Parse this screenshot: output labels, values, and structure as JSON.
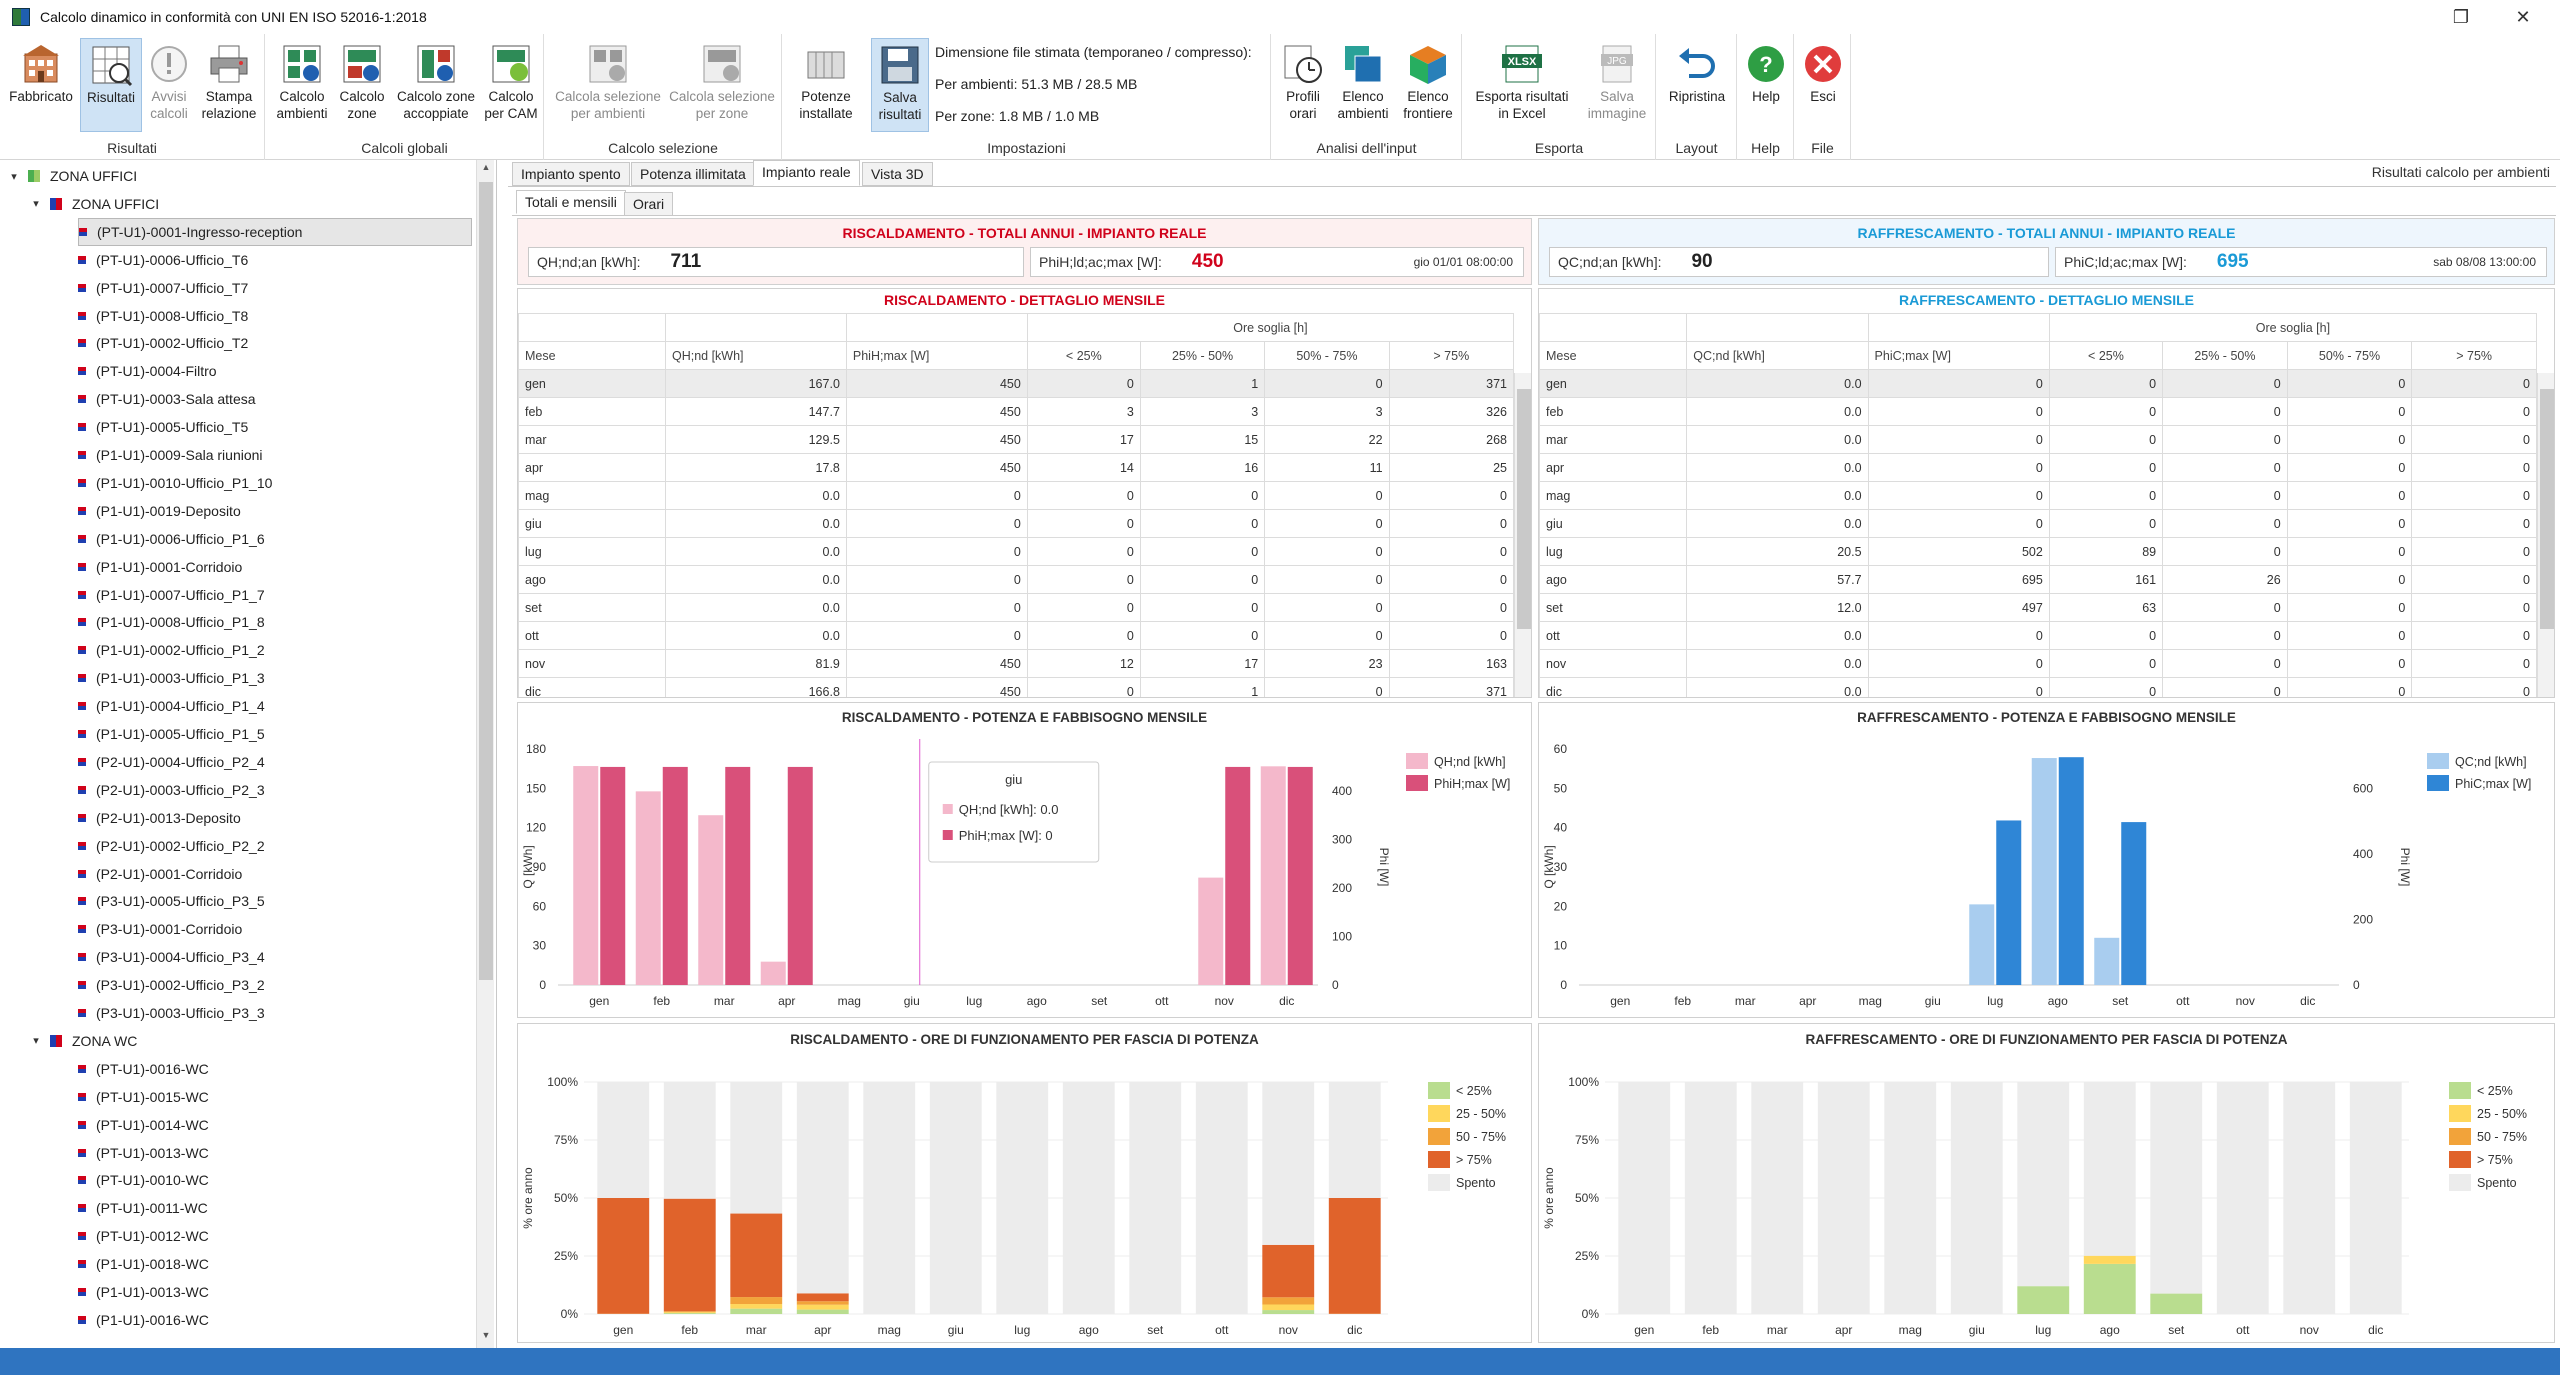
{
  "window": {
    "title": "Calcolo dinamico in conformità con UNI EN ISO 52016-1:2018",
    "restore": "❐",
    "close": "✕"
  },
  "ribbon": {
    "groups": [
      {
        "caption": "Risultati",
        "buttons": [
          "Fabbricato",
          "Risultati",
          "Avvisi\ncalcoli",
          "Stampa\nrelazione"
        ]
      },
      {
        "caption": "Calcoli globali",
        "buttons": [
          "Calcolo\nambienti",
          "Calcolo\nzone",
          "Calcolo zone\naccoppiate",
          "Calcolo\nper CAM"
        ]
      },
      {
        "caption": "Calcolo selezione",
        "buttons": [
          "Calcola selezione\nper ambienti",
          "Calcola selezione\nper zone"
        ]
      },
      {
        "caption": "Impostazioni",
        "buttons": [
          "Potenze\ninstallate",
          "Salva\nrisultati"
        ]
      },
      {
        "caption": "Analisi dell'input",
        "buttons": [
          "Profili\norari",
          "Elenco\nambienti",
          "Elenco\nfrontiere"
        ]
      },
      {
        "caption": "Esporta",
        "buttons": [
          "Esporta risultati\nin Excel",
          "Salva\nimmagine"
        ]
      },
      {
        "caption": "Layout",
        "buttons": [
          "Ripristina"
        ]
      },
      {
        "caption": "Help",
        "buttons": [
          "Help"
        ]
      },
      {
        "caption": "File",
        "buttons": [
          "Esci"
        ]
      }
    ],
    "settings": {
      "line1": "Dimensione file stimata (temporaneo / compresso):",
      "line2": "Per ambienti: 51.3 MB / 28.5 MB",
      "line3": "Per zone: 1.8 MB / 1.0 MB"
    },
    "icons": {
      "xlsx": "XLSX",
      "jpg": "JPG"
    }
  },
  "tree": {
    "root": "ZONA UFFICI",
    "zone1": "ZONA UFFICI",
    "zone1_items": [
      "(PT-U1)-0001-Ingresso-reception",
      "(PT-U1)-0006-Ufficio_T6",
      "(PT-U1)-0007-Ufficio_T7",
      "(PT-U1)-0008-Ufficio_T8",
      "(PT-U1)-0002-Ufficio_T2",
      "(PT-U1)-0004-Filtro",
      "(PT-U1)-0003-Sala attesa",
      "(PT-U1)-0005-Ufficio_T5",
      "(P1-U1)-0009-Sala riunioni",
      "(P1-U1)-0010-Ufficio_P1_10",
      "(P1-U1)-0019-Deposito",
      "(P1-U1)-0006-Ufficio_P1_6",
      "(P1-U1)-0001-Corridoio",
      "(P1-U1)-0007-Ufficio_P1_7",
      "(P1-U1)-0008-Ufficio_P1_8",
      "(P1-U1)-0002-Ufficio_P1_2",
      "(P1-U1)-0003-Ufficio_P1_3",
      "(P1-U1)-0004-Ufficio_P1_4",
      "(P1-U1)-0005-Ufficio_P1_5",
      "(P2-U1)-0004-Ufficio_P2_4",
      "(P2-U1)-0003-Ufficio_P2_3",
      "(P2-U1)-0013-Deposito",
      "(P2-U1)-0002-Ufficio_P2_2",
      "(P2-U1)-0001-Corridoio",
      "(P3-U1)-0005-Ufficio_P3_5",
      "(P3-U1)-0001-Corridoio",
      "(P3-U1)-0004-Ufficio_P3_4",
      "(P3-U1)-0002-Ufficio_P3_2",
      "(P3-U1)-0003-Ufficio_P3_3"
    ],
    "zone2": "ZONA WC",
    "zone2_items": [
      "(PT-U1)-0016-WC",
      "(PT-U1)-0015-WC",
      "(PT-U1)-0014-WC",
      "(PT-U1)-0013-WC",
      "(PT-U1)-0010-WC",
      "(PT-U1)-0011-WC",
      "(PT-U1)-0012-WC",
      "(P1-U1)-0018-WC",
      "(P1-U1)-0013-WC",
      "(P1-U1)-0016-WC"
    ]
  },
  "tabs": [
    "Impianto spento",
    "Potenza illimitata",
    "Impianto reale",
    "Vista 3D"
  ],
  "subtabs": [
    "Totali e mensili",
    "Orari"
  ],
  "right_label": "Risultati calcolo per ambienti",
  "heating": {
    "totals_title": "RISCALDAMENTO - TOTALI ANNUI - IMPIANTO REALE",
    "k1_label": "QH;nd;an [kWh]:",
    "k1_value": "711",
    "k2_label": "PhiH;ld;ac;max [W]:",
    "k2_value": "450",
    "k2_time": "gio 01/01 08:00:00",
    "monthly_title": "RISCALDAMENTO - DETTAGLIO MENSILE",
    "headers": [
      "Mese",
      "QH;nd [kWh]",
      "PhiH;max [W]",
      "Ore soglia [h]",
      "< 25%",
      "25% - 50%",
      "50% - 75%",
      "> 75%"
    ],
    "rows": [
      [
        "gen",
        "167.0",
        "450",
        "0",
        "1",
        "0",
        "371"
      ],
      [
        "feb",
        "147.7",
        "450",
        "3",
        "3",
        "3",
        "326"
      ],
      [
        "mar",
        "129.5",
        "450",
        "17",
        "15",
        "22",
        "268"
      ],
      [
        "apr",
        "17.8",
        "450",
        "14",
        "16",
        "11",
        "25"
      ],
      [
        "mag",
        "0.0",
        "0",
        "0",
        "0",
        "0",
        "0"
      ],
      [
        "giu",
        "0.0",
        "0",
        "0",
        "0",
        "0",
        "0"
      ],
      [
        "lug",
        "0.0",
        "0",
        "0",
        "0",
        "0",
        "0"
      ],
      [
        "ago",
        "0.0",
        "0",
        "0",
        "0",
        "0",
        "0"
      ],
      [
        "set",
        "0.0",
        "0",
        "0",
        "0",
        "0",
        "0"
      ],
      [
        "ott",
        "0.0",
        "0",
        "0",
        "0",
        "0",
        "0"
      ],
      [
        "nov",
        "81.9",
        "450",
        "12",
        "17",
        "23",
        "163"
      ],
      [
        "dic",
        "166.8",
        "450",
        "0",
        "1",
        "0",
        "371"
      ]
    ],
    "chart1_title": "RISCALDAMENTO - POTENZA E FABBISOGNO MENSILE",
    "chart2_title": "RISCALDAMENTO - ORE DI FUNZIONAMENTO PER FASCIA DI POTENZA",
    "tooltip": {
      "title": "giu",
      "line1": "QH;nd [kWh]: 0.0",
      "line2": "PhiH;max [W]: 0"
    }
  },
  "cooling": {
    "totals_title": "RAFFRESCAMENTO - TOTALI ANNUI - IMPIANTO REALE",
    "k1_label": "QC;nd;an [kWh]:",
    "k1_value": "90",
    "k2_label": "PhiC;ld;ac;max [W]:",
    "k2_value": "695",
    "k2_time": "sab 08/08 13:00:00",
    "monthly_title": "RAFFRESCAMENTO - DETTAGLIO MENSILE",
    "headers": [
      "Mese",
      "QC;nd [kWh]",
      "PhiC;max [W]",
      "Ore soglia [h]",
      "< 25%",
      "25% - 50%",
      "50% - 75%",
      "> 75%"
    ],
    "rows": [
      [
        "gen",
        "0.0",
        "0",
        "0",
        "0",
        "0",
        "0"
      ],
      [
        "feb",
        "0.0",
        "0",
        "0",
        "0",
        "0",
        "0"
      ],
      [
        "mar",
        "0.0",
        "0",
        "0",
        "0",
        "0",
        "0"
      ],
      [
        "apr",
        "0.0",
        "0",
        "0",
        "0",
        "0",
        "0"
      ],
      [
        "mag",
        "0.0",
        "0",
        "0",
        "0",
        "0",
        "0"
      ],
      [
        "giu",
        "0.0",
        "0",
        "0",
        "0",
        "0",
        "0"
      ],
      [
        "lug",
        "20.5",
        "502",
        "89",
        "0",
        "0",
        "0"
      ],
      [
        "ago",
        "57.7",
        "695",
        "161",
        "26",
        "0",
        "0"
      ],
      [
        "set",
        "12.0",
        "497",
        "63",
        "0",
        "0",
        "0"
      ],
      [
        "ott",
        "0.0",
        "0",
        "0",
        "0",
        "0",
        "0"
      ],
      [
        "nov",
        "0.0",
        "0",
        "0",
        "0",
        "0",
        "0"
      ],
      [
        "dic",
        "0.0",
        "0",
        "0",
        "0",
        "0",
        "0"
      ]
    ],
    "chart1_title": "RAFFRESCAMENTO - POTENZA E FABBISOGNO MENSILE",
    "chart2_title": "RAFFRESCAMENTO - ORE DI FUNZIONAMENTO PER FASCIA DI POTENZA"
  },
  "colors": {
    "heat_red": "#d0021b",
    "cool_blue": "#1a9ad6",
    "heat_light": "#f4b8cb",
    "heat_dark": "#d9507a",
    "cool_light": "#a9cdef",
    "cool_dark": "#2f86d6",
    "b1": "#b9dd8f",
    "b2": "#ffd75c",
    "b3": "#f2a33a",
    "b4": "#e0632b",
    "off": "#ececec"
  },
  "chart_data": [
    {
      "type": "bar",
      "title": "RISCALDAMENTO - POTENZA E FABBISOGNO MENSILE",
      "categories": [
        "gen",
        "feb",
        "mar",
        "apr",
        "mag",
        "giu",
        "lug",
        "ago",
        "set",
        "ott",
        "nov",
        "dic"
      ],
      "ylabel": "Q [kWh]",
      "y2label": "Phi [W]",
      "ylim": [
        0,
        180
      ],
      "y2lim": [
        0,
        487
      ],
      "yticks": [
        "0",
        "30",
        "60",
        "90",
        "120",
        "150",
        "180"
      ],
      "y2ticks": [
        "0",
        "100",
        "200",
        "300",
        "400"
      ],
      "series": [
        {
          "name": "QH;nd [kWh]",
          "axis": "left",
          "values": [
            167.0,
            147.7,
            129.5,
            17.8,
            0,
            0,
            0,
            0,
            0,
            0,
            81.9,
            166.8
          ]
        },
        {
          "name": "PhiH;max [W]",
          "axis": "right",
          "values": [
            450,
            450,
            450,
            450,
            0,
            0,
            0,
            0,
            0,
            0,
            450,
            450
          ]
        }
      ],
      "legend": "top-right"
    },
    {
      "type": "bar",
      "title": "RAFFRESCAMENTO - POTENZA E FABBISOGNO MENSILE",
      "categories": [
        "gen",
        "feb",
        "mar",
        "apr",
        "mag",
        "giu",
        "lug",
        "ago",
        "set",
        "ott",
        "nov",
        "dic"
      ],
      "ylabel": "Q [kWh]",
      "y2label": "Phi [W]",
      "ylim": [
        0,
        60
      ],
      "y2lim": [
        0,
        720
      ],
      "yticks": [
        "0",
        "10",
        "20",
        "30",
        "40",
        "50",
        "60"
      ],
      "y2ticks": [
        "0",
        "200",
        "400",
        "600"
      ],
      "series": [
        {
          "name": "QC;nd [kWh]",
          "axis": "left",
          "values": [
            0,
            0,
            0,
            0,
            0,
            0,
            20.5,
            57.7,
            12.0,
            0,
            0,
            0
          ]
        },
        {
          "name": "PhiC;max [W]",
          "axis": "right",
          "values": [
            0,
            0,
            0,
            0,
            0,
            0,
            502,
            695,
            497,
            0,
            0,
            0
          ]
        }
      ],
      "legend": "top-right"
    },
    {
      "type": "bar",
      "stacked": true,
      "title": "RISCALDAMENTO - ORE DI FUNZIONAMENTO PER FASCIA DI POTENZA",
      "categories": [
        "gen",
        "feb",
        "mar",
        "apr",
        "mag",
        "giu",
        "lug",
        "ago",
        "set",
        "ott",
        "nov",
        "dic"
      ],
      "ylabel": "% ore anno",
      "ylim": [
        0,
        1
      ],
      "yticks": [
        "0%",
        "25%",
        "50%",
        "75%",
        "100%"
      ],
      "series": [
        {
          "name": "< 25%",
          "values": [
            0,
            0.004,
            0.023,
            0.019,
            0,
            0,
            0,
            0,
            0,
            0,
            0.017,
            0
          ]
        },
        {
          "name": "25 - 50%",
          "values": [
            0.001,
            0.004,
            0.02,
            0.021,
            0,
            0,
            0,
            0,
            0,
            0,
            0.024,
            0.001
          ]
        },
        {
          "name": "50 - 75%",
          "values": [
            0,
            0.004,
            0.03,
            0.015,
            0,
            0,
            0,
            0,
            0,
            0,
            0.031,
            0
          ]
        },
        {
          "name": "> 75%",
          "values": [
            0.499,
            0.485,
            0.36,
            0.034,
            0,
            0,
            0,
            0,
            0,
            0,
            0.226,
            0.499
          ]
        },
        {
          "name": "Spento",
          "values": [
            0.5,
            0.503,
            0.567,
            0.911,
            1,
            1,
            1,
            1,
            1,
            1,
            0.702,
            0.5
          ]
        }
      ],
      "legend": "top-right"
    },
    {
      "type": "bar",
      "stacked": true,
      "title": "RAFFRESCAMENTO - ORE DI FUNZIONAMENTO PER FASCIA DI POTENZA",
      "categories": [
        "gen",
        "feb",
        "mar",
        "apr",
        "mag",
        "giu",
        "lug",
        "ago",
        "set",
        "ott",
        "nov",
        "dic"
      ],
      "ylabel": "% ore anno",
      "ylim": [
        0,
        1
      ],
      "yticks": [
        "0%",
        "25%",
        "50%",
        "75%",
        "100%"
      ],
      "series": [
        {
          "name": "< 25%",
          "values": [
            0,
            0,
            0,
            0,
            0,
            0,
            0.12,
            0.216,
            0.088,
            0,
            0,
            0
          ]
        },
        {
          "name": "25 - 50%",
          "values": [
            0,
            0,
            0,
            0,
            0,
            0,
            0,
            0.035,
            0,
            0,
            0,
            0
          ]
        },
        {
          "name": "50 - 75%",
          "values": [
            0,
            0,
            0,
            0,
            0,
            0,
            0,
            0,
            0,
            0,
            0,
            0
          ]
        },
        {
          "name": "> 75%",
          "values": [
            0,
            0,
            0,
            0,
            0,
            0,
            0,
            0,
            0,
            0,
            0,
            0
          ]
        },
        {
          "name": "Spento",
          "values": [
            1,
            1,
            1,
            1,
            1,
            1,
            0.88,
            0.749,
            0.912,
            1,
            1,
            1
          ]
        }
      ],
      "legend": "top-right"
    }
  ]
}
